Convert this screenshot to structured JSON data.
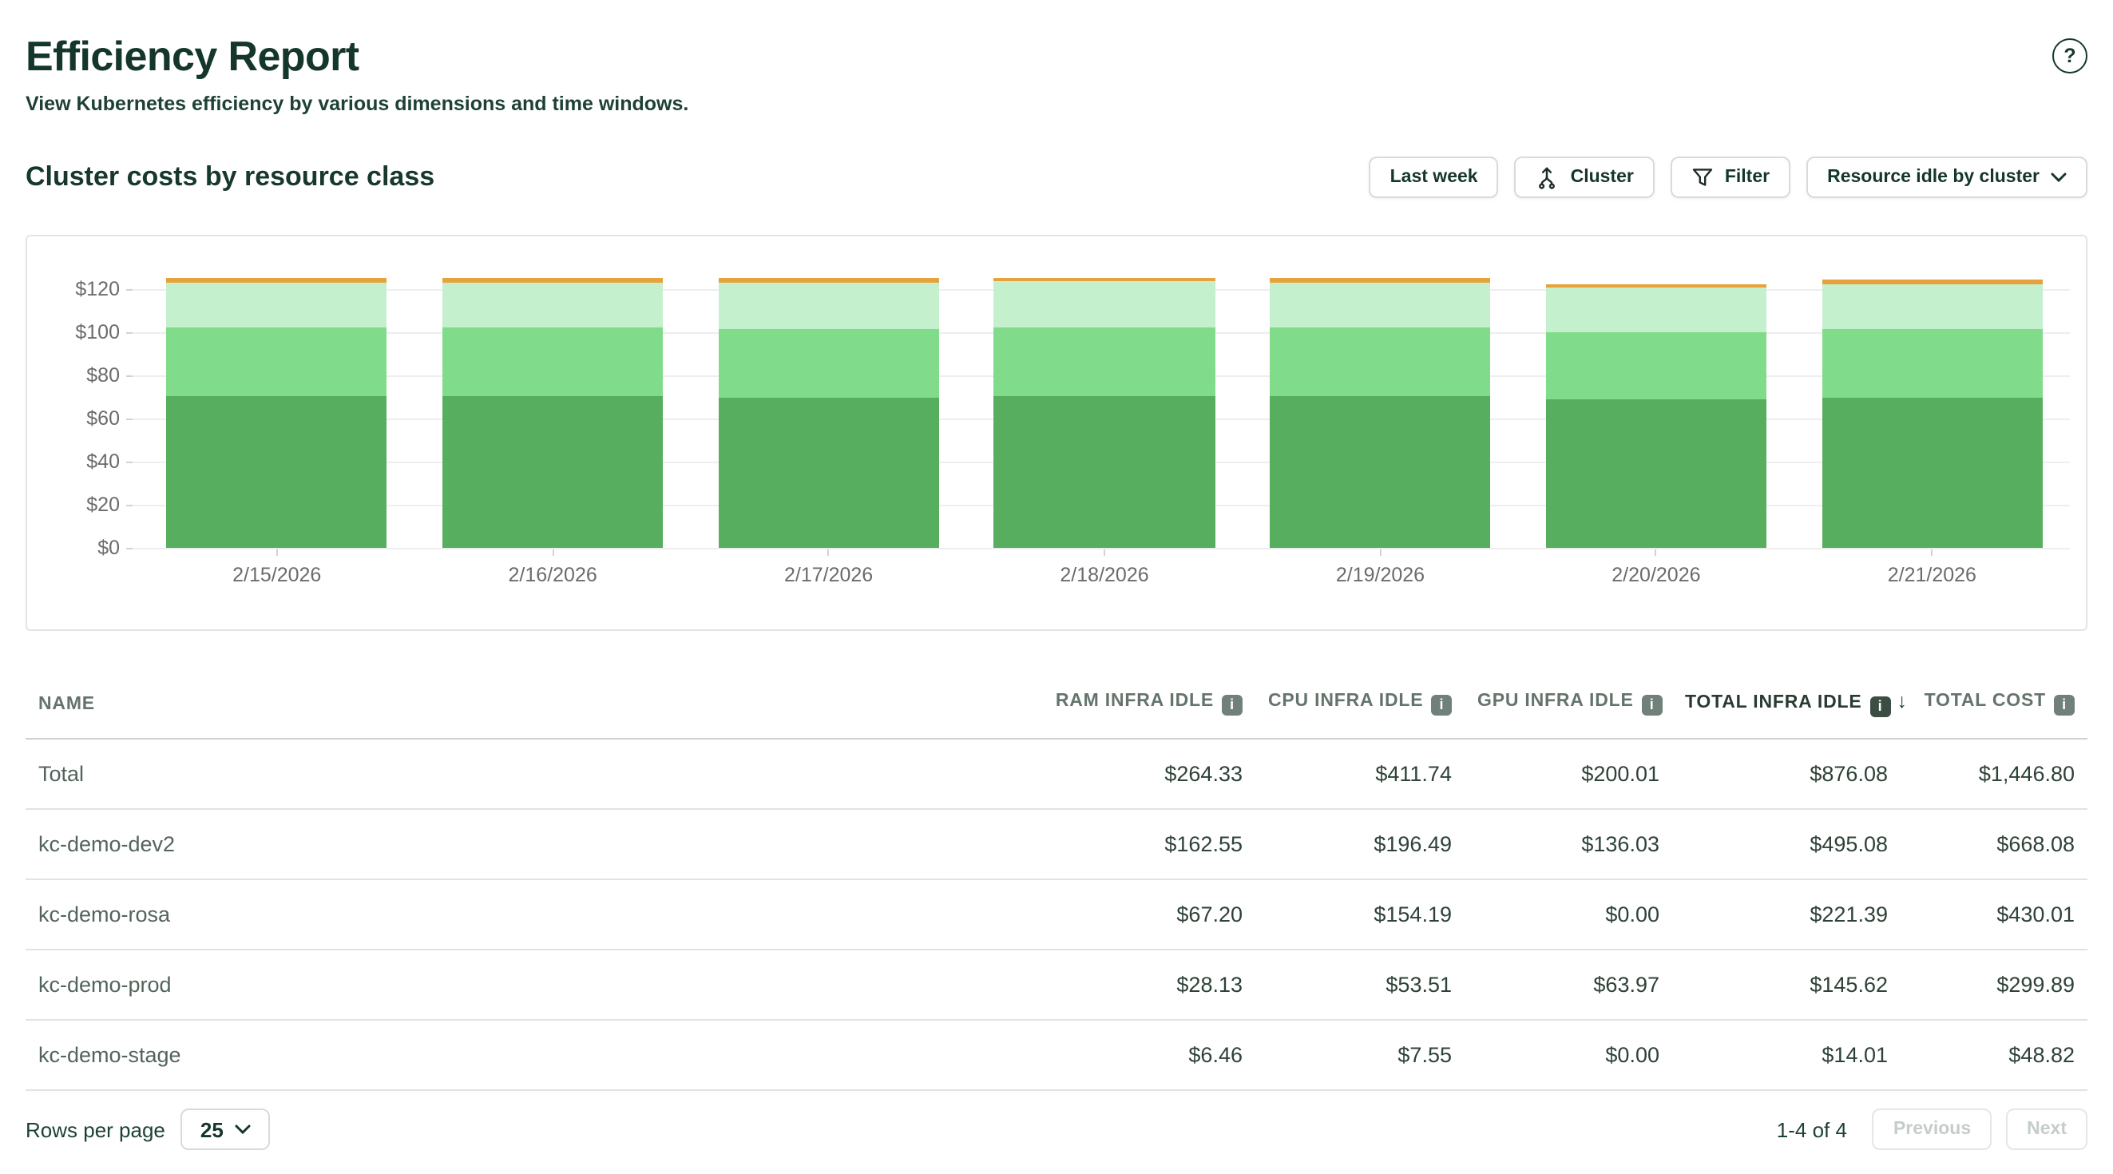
{
  "header": {
    "title": "Efficiency Report",
    "subtitle": "View Kubernetes efficiency by various dimensions and time windows.",
    "help_glyph": "?"
  },
  "section": {
    "title": "Cluster costs by resource class"
  },
  "toolbar": {
    "time_window": "Last week",
    "aggregate": "Cluster",
    "filter": "Filter",
    "idle_breakdown": "Resource idle by cluster"
  },
  "chart_data": {
    "type": "bar",
    "stacked": true,
    "x": [
      "2/15/2026",
      "2/16/2026",
      "2/17/2026",
      "2/18/2026",
      "2/19/2026",
      "2/20/2026",
      "2/21/2026"
    ],
    "series": [
      {
        "name": "dark-green",
        "color": "#56ae5e",
        "values": [
          70.5,
          70.5,
          70.0,
          70.5,
          70.5,
          69.0,
          69.5
        ]
      },
      {
        "name": "medium-green",
        "color": "#80db8a",
        "values": [
          32.0,
          32.0,
          32.0,
          32.0,
          32.0,
          31.5,
          32.0
        ]
      },
      {
        "name": "light-green",
        "color": "#c5f0cd",
        "values": [
          20.5,
          20.5,
          21.0,
          21.0,
          20.5,
          20.5,
          21.0
        ]
      },
      {
        "name": "orange",
        "color": "#e6a23c",
        "values": [
          2.0,
          2.0,
          2.0,
          1.9,
          2.0,
          1.7,
          1.8
        ]
      }
    ],
    "yticks": [
      0,
      20,
      40,
      60,
      80,
      100,
      120
    ],
    "ytick_prefix": "$",
    "ylim": [
      0,
      130
    ],
    "grid": true,
    "legend": false,
    "title": "Cluster costs by resource class"
  },
  "table": {
    "info_glyph": "i",
    "sort_desc_glyph": "↓",
    "columns": [
      {
        "label": "NAME"
      },
      {
        "label": "RAM INFRA IDLE"
      },
      {
        "label": "CPU INFRA IDLE"
      },
      {
        "label": "GPU INFRA IDLE"
      },
      {
        "label": "TOTAL INFRA IDLE",
        "sorted": "desc"
      },
      {
        "label": "TOTAL COST"
      }
    ],
    "rows": [
      {
        "name": "Total",
        "ram": "$264.33",
        "cpu": "$411.74",
        "gpu": "$200.01",
        "total_infra": "$876.08",
        "total_cost": "$1,446.80"
      },
      {
        "name": "kc-demo-dev2",
        "ram": "$162.55",
        "cpu": "$196.49",
        "gpu": "$136.03",
        "total_infra": "$495.08",
        "total_cost": "$668.08"
      },
      {
        "name": "kc-demo-rosa",
        "ram": "$67.20",
        "cpu": "$154.19",
        "gpu": "$0.00",
        "total_infra": "$221.39",
        "total_cost": "$430.01"
      },
      {
        "name": "kc-demo-prod",
        "ram": "$28.13",
        "cpu": "$53.51",
        "gpu": "$63.97",
        "total_infra": "$145.62",
        "total_cost": "$299.89"
      },
      {
        "name": "kc-demo-stage",
        "ram": "$6.46",
        "cpu": "$7.55",
        "gpu": "$0.00",
        "total_infra": "$14.01",
        "total_cost": "$48.82"
      }
    ]
  },
  "pagination": {
    "rows_per_page_label": "Rows per page",
    "rows_per_page": "25",
    "range": "1-4 of 4",
    "previous": "Previous",
    "next": "Next"
  },
  "colors": {
    "accent_dark_green": "#14362b",
    "header_gray_green": "#64746b",
    "border": "#d7dcd8",
    "row_border": "#dfe4e1",
    "axis_text": "#6b6b6b",
    "gridline": "#eeeeee"
  }
}
